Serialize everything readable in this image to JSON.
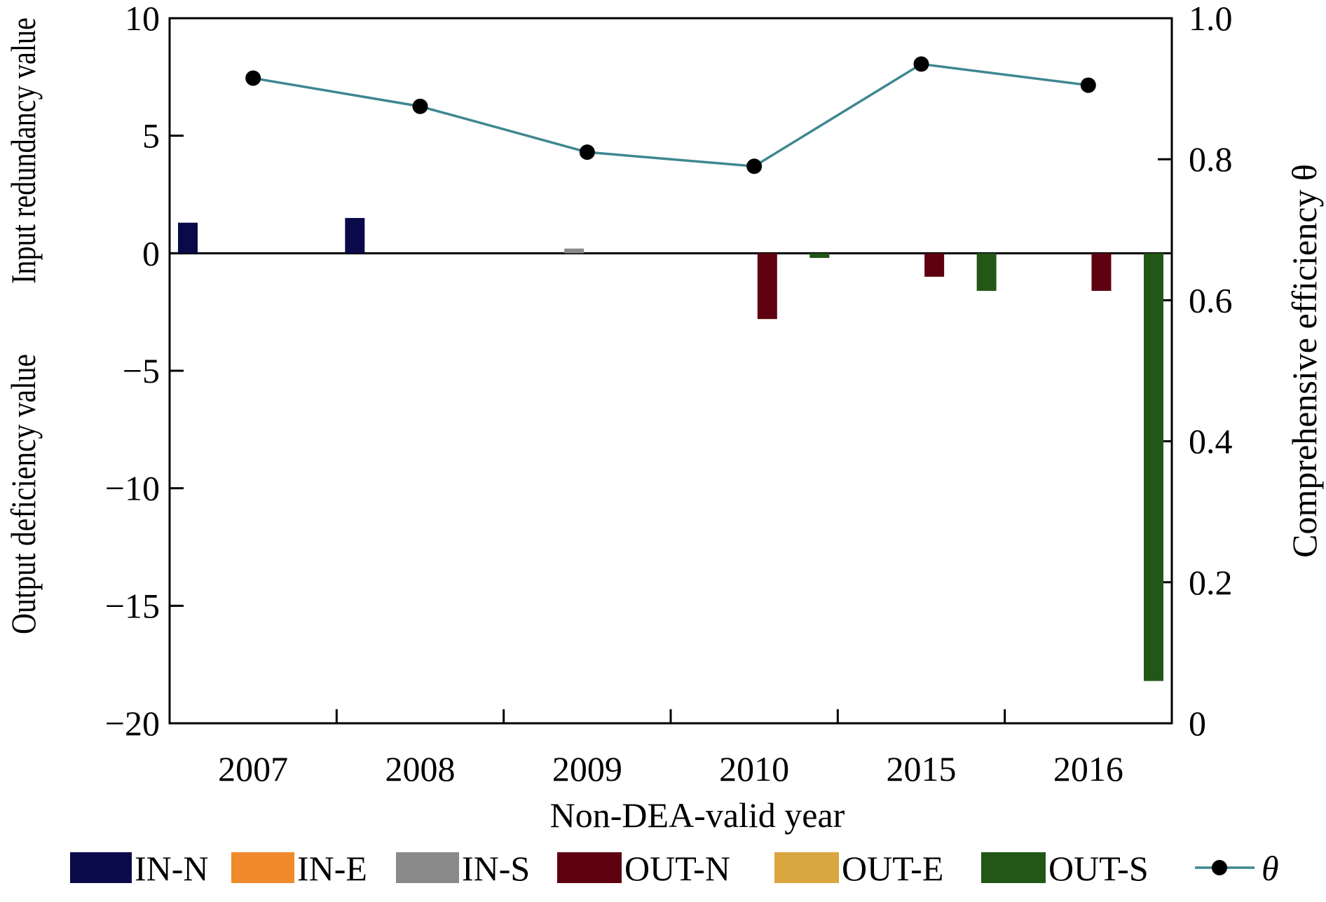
{
  "chart_data": {
    "type": "bar",
    "xlabel": "Non-DEA-valid year",
    "ylabel_left_top": "Input redundancy value",
    "ylabel_left_bottom": "Output deficiency value",
    "ylabel_right": "Comprehensive efficiency θ",
    "categories": [
      "2007",
      "2008",
      "2009",
      "2010",
      "2015",
      "2016"
    ],
    "ylim_left": [
      -20,
      10
    ],
    "ylim_right": [
      0,
      1.0
    ],
    "yticks_left": [
      "10",
      "5",
      "0",
      "−5",
      "−10",
      "−15",
      "−20"
    ],
    "yticks_left_values": [
      10,
      5,
      0,
      -5,
      -10,
      -15,
      -20
    ],
    "yticks_right": [
      "1.0",
      "0.8",
      "0.6",
      "0.4",
      "0.2",
      "0"
    ],
    "yticks_right_values": [
      1.0,
      0.8,
      0.6,
      0.4,
      0.2,
      0
    ],
    "series": [
      {
        "name": "IN-N",
        "color": "#0a0a4a",
        "values": [
          1.3,
          1.5,
          0,
          0,
          0,
          0
        ]
      },
      {
        "name": "IN-E",
        "color": "#f08a2c",
        "values": [
          0,
          0,
          0,
          0,
          0,
          0
        ]
      },
      {
        "name": "IN-S",
        "color": "#8a8a8a",
        "values": [
          0,
          0,
          0.2,
          0,
          0,
          0
        ]
      },
      {
        "name": "OUT-N",
        "color": "#5e0010",
        "values": [
          0,
          0,
          0,
          -2.8,
          -1.0,
          -1.6
        ]
      },
      {
        "name": "OUT-E",
        "color": "#d9a640",
        "values": [
          0,
          0,
          0,
          0,
          0,
          0
        ]
      },
      {
        "name": "OUT-S",
        "color": "#235717",
        "values": [
          0,
          0,
          0,
          -0.2,
          -1.6,
          -18.2
        ]
      }
    ],
    "line_series": {
      "name": "θ",
      "color": "#3f8790",
      "axis": "right",
      "values": [
        0.915,
        0.875,
        0.81,
        0.79,
        0.935,
        0.905
      ]
    },
    "grid": false,
    "legend_position": "bottom"
  }
}
